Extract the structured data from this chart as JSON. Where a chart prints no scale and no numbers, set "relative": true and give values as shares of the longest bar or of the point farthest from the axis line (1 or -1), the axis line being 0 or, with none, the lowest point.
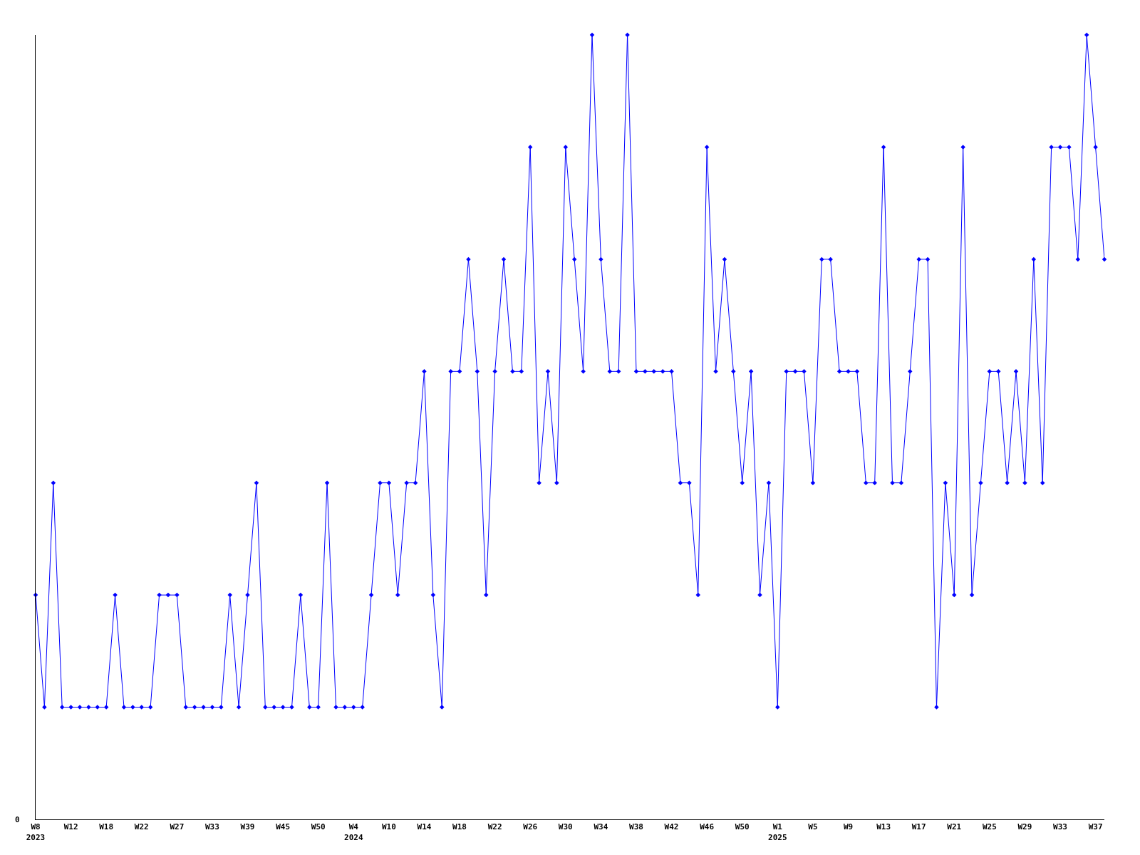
{
  "chart_data": {
    "type": "line",
    "relative": true,
    "marker": "diamond",
    "line_style": "solid",
    "grid": false,
    "categories": [
      "W8\n2023",
      null,
      null,
      null,
      "W12",
      null,
      null,
      null,
      "W18",
      null,
      null,
      null,
      "W22",
      null,
      null,
      null,
      "W27",
      null,
      null,
      null,
      "W33",
      null,
      null,
      null,
      "W39",
      null,
      null,
      null,
      "W45",
      null,
      null,
      null,
      "W50",
      null,
      null,
      null,
      "W4\n2024",
      null,
      null,
      null,
      "W10",
      null,
      null,
      null,
      "W14",
      null,
      null,
      null,
      "W18",
      null,
      null,
      null,
      "W22",
      null,
      null,
      null,
      "W26",
      null,
      null,
      null,
      "W30",
      null,
      null,
      null,
      "W34",
      null,
      null,
      null,
      "W38",
      null,
      null,
      null,
      "W42",
      null,
      null,
      null,
      "W46",
      null,
      null,
      null,
      "W50",
      null,
      null,
      null,
      "W1\n2025",
      null,
      null,
      null,
      "W5",
      null,
      null,
      null,
      "W9",
      null,
      null,
      null,
      "W13",
      null,
      null,
      null,
      "W17",
      null,
      null,
      null,
      "W21",
      null,
      null,
      null,
      "W25",
      null,
      null,
      null,
      "W29",
      null,
      null,
      null,
      "W33",
      null,
      null,
      null,
      "W37",
      null
    ],
    "series": [
      {
        "color": "#0000ff",
        "values": [
          0.286,
          0.143,
          0.429,
          0.143,
          0.143,
          0.143,
          0.143,
          0.143,
          0.143,
          0.286,
          0.143,
          0.143,
          0.143,
          0.143,
          0.286,
          0.286,
          0.286,
          0.143,
          0.143,
          0.143,
          0.143,
          0.143,
          0.286,
          0.143,
          0.286,
          0.429,
          0.143,
          0.143,
          0.143,
          0.143,
          0.286,
          0.143,
          0.143,
          0.429,
          0.143,
          0.143,
          0.143,
          0.143,
          0.286,
          0.429,
          0.429,
          0.286,
          0.429,
          0.429,
          0.571,
          0.286,
          0.143,
          0.571,
          0.571,
          0.714,
          0.571,
          0.286,
          0.571,
          0.714,
          0.571,
          0.571,
          0.857,
          0.429,
          0.571,
          0.429,
          0.857,
          0.714,
          0.571,
          1,
          0.714,
          0.571,
          0.571,
          1,
          0.571,
          0.571,
          0.571,
          0.571,
          0.571,
          0.429,
          0.429,
          0.286,
          0.857,
          0.571,
          0.714,
          0.571,
          0.429,
          0.571,
          0.286,
          0.429,
          0.143,
          0.571,
          0.571,
          0.571,
          0.429,
          0.714,
          0.714,
          0.571,
          0.571,
          0.571,
          0.429,
          0.429,
          0.857,
          0.429,
          0.429,
          0.571,
          0.714,
          0.714,
          0.143,
          0.429,
          0.286,
          0.857,
          0.286,
          0.429,
          0.571,
          0.571,
          0.429,
          0.571,
          0.429,
          0.714,
          0.429,
          0.857,
          0.857,
          0.857,
          0.714,
          1,
          0.857,
          0.714
        ]
      }
    ],
    "annotations": [
      "0"
    ]
  }
}
